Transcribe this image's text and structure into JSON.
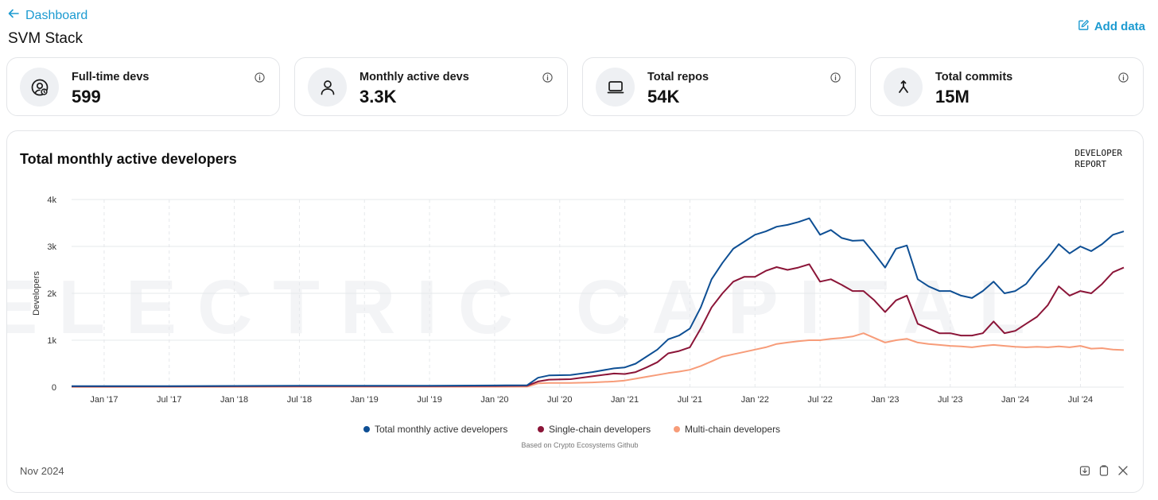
{
  "nav": {
    "back_label": "Dashboard",
    "back_icon": "arrow-left-icon"
  },
  "page": {
    "title": "SVM Stack"
  },
  "actions": {
    "add_data_label": "Add data",
    "add_data_icon": "edit-icon"
  },
  "stats": [
    {
      "label": "Full-time devs",
      "value": "599",
      "icon": "user-badge-icon"
    },
    {
      "label": "Monthly active devs",
      "value": "3.3K",
      "icon": "person-icon"
    },
    {
      "label": "Total repos",
      "value": "54K",
      "icon": "laptop-icon"
    },
    {
      "label": "Total commits",
      "value": "15M",
      "icon": "merge-icon"
    }
  ],
  "chart": {
    "brand_line1": "DEVELOPER",
    "brand_line2": "REPORT",
    "watermark": "ELECTRIC CAPITAL",
    "source_note": "Based on Crypto Ecosystems Github",
    "footer_date": "Nov 2024"
  },
  "colors": {
    "accent": "#1d9bd1",
    "total": "#0e4f94",
    "single": "#8b1538",
    "multi": "#f79c79"
  },
  "chart_data": {
    "type": "line",
    "title": "Total monthly active developers",
    "xlabel": "",
    "ylabel": "Developers",
    "ylim": [
      0,
      4000
    ],
    "yticks": [
      0,
      1000,
      2000,
      3000,
      4000
    ],
    "ytick_labels": [
      "0",
      "1k",
      "2k",
      "3k",
      "4k"
    ],
    "x_start": "Oct '16",
    "x_end": "Nov '24",
    "xtick_labels": [
      "Jan '17",
      "Jul '17",
      "Jan '18",
      "Jul '18",
      "Jan '19",
      "Jul '19",
      "Jan '20",
      "Jul '20",
      "Jan '21",
      "Jul '21",
      "Jan '22",
      "Jul '22",
      "Jan '23",
      "Jul '23",
      "Jan '24",
      "Jul '24"
    ],
    "grid": true,
    "legend_position": "bottom-center",
    "series": [
      {
        "name": "Total monthly active developers",
        "color": "#0e4f94",
        "points": [
          [
            "Oct '16",
            20
          ],
          [
            "Jan '17",
            20
          ],
          [
            "Jul '17",
            22
          ],
          [
            "Jan '18",
            25
          ],
          [
            "Jul '18",
            28
          ],
          [
            "Jan '19",
            28
          ],
          [
            "Jul '19",
            30
          ],
          [
            "Jan '20",
            35
          ],
          [
            "Apr '20",
            40
          ],
          [
            "May '20",
            200
          ],
          [
            "Jun '20",
            250
          ],
          [
            "Aug '20",
            260
          ],
          [
            "Oct '20",
            320
          ],
          [
            "Dec '20",
            400
          ],
          [
            "Jan '21",
            420
          ],
          [
            "Feb '21",
            500
          ],
          [
            "Mar '21",
            650
          ],
          [
            "Apr '21",
            800
          ],
          [
            "May '21",
            1020
          ],
          [
            "Jun '21",
            1100
          ],
          [
            "Jul '21",
            1250
          ],
          [
            "Aug '21",
            1700
          ],
          [
            "Sep '21",
            2300
          ],
          [
            "Oct '21",
            2650
          ],
          [
            "Nov '21",
            2950
          ],
          [
            "Dec '21",
            3100
          ],
          [
            "Jan '22",
            3250
          ],
          [
            "Feb '22",
            3320
          ],
          [
            "Mar '22",
            3420
          ],
          [
            "Apr '22",
            3460
          ],
          [
            "May '22",
            3520
          ],
          [
            "Jun '22",
            3600
          ],
          [
            "Jul '22",
            3250
          ],
          [
            "Aug '22",
            3350
          ],
          [
            "Sep '22",
            3180
          ],
          [
            "Oct '22",
            3120
          ],
          [
            "Nov '22",
            3130
          ],
          [
            "Dec '22",
            2850
          ],
          [
            "Jan '23",
            2550
          ],
          [
            "Feb '23",
            2950
          ],
          [
            "Mar '23",
            3020
          ],
          [
            "Apr '23",
            2300
          ],
          [
            "May '23",
            2150
          ],
          [
            "Jun '23",
            2050
          ],
          [
            "Jul '23",
            2050
          ],
          [
            "Aug '23",
            1950
          ],
          [
            "Sep '23",
            1900
          ],
          [
            "Oct '23",
            2050
          ],
          [
            "Nov '23",
            2250
          ],
          [
            "Dec '23",
            2000
          ],
          [
            "Jan '24",
            2050
          ],
          [
            "Feb '24",
            2200
          ],
          [
            "Mar '24",
            2500
          ],
          [
            "Apr '24",
            2750
          ],
          [
            "May '24",
            3050
          ],
          [
            "Jun '24",
            2850
          ],
          [
            "Jul '24",
            3000
          ],
          [
            "Aug '24",
            2900
          ],
          [
            "Sep '24",
            3050
          ],
          [
            "Oct '24",
            3250
          ],
          [
            "Nov '24",
            3320
          ]
        ]
      },
      {
        "name": "Single-chain developers",
        "color": "#8b1538",
        "points": [
          [
            "Oct '16",
            15
          ],
          [
            "Jan '17",
            15
          ],
          [
            "Jul '17",
            16
          ],
          [
            "Jan '18",
            18
          ],
          [
            "Jul '18",
            20
          ],
          [
            "Jan '19",
            20
          ],
          [
            "Jul '19",
            22
          ],
          [
            "Jan '20",
            26
          ],
          [
            "Apr '20",
            30
          ],
          [
            "May '20",
            120
          ],
          [
            "Jun '20",
            160
          ],
          [
            "Aug '20",
            170
          ],
          [
            "Oct '20",
            230
          ],
          [
            "Dec '20",
            290
          ],
          [
            "Jan '21",
            280
          ],
          [
            "Feb '21",
            320
          ],
          [
            "Mar '21",
            420
          ],
          [
            "Apr '21",
            530
          ],
          [
            "May '21",
            720
          ],
          [
            "Jun '21",
            770
          ],
          [
            "Jul '21",
            850
          ],
          [
            "Aug '21",
            1250
          ],
          [
            "Sep '21",
            1700
          ],
          [
            "Oct '21",
            2000
          ],
          [
            "Nov '21",
            2250
          ],
          [
            "Dec '21",
            2350
          ],
          [
            "Jan '22",
            2350
          ],
          [
            "Feb '22",
            2480
          ],
          [
            "Mar '22",
            2560
          ],
          [
            "Apr '22",
            2500
          ],
          [
            "May '22",
            2550
          ],
          [
            "Jun '22",
            2620
          ],
          [
            "Jul '22",
            2250
          ],
          [
            "Aug '22",
            2300
          ],
          [
            "Sep '22",
            2180
          ],
          [
            "Oct '22",
            2050
          ],
          [
            "Nov '22",
            2050
          ],
          [
            "Dec '22",
            1850
          ],
          [
            "Jan '23",
            1600
          ],
          [
            "Feb '23",
            1850
          ],
          [
            "Mar '23",
            1950
          ],
          [
            "Apr '23",
            1350
          ],
          [
            "May '23",
            1250
          ],
          [
            "Jun '23",
            1150
          ],
          [
            "Jul '23",
            1150
          ],
          [
            "Aug '23",
            1100
          ],
          [
            "Sep '23",
            1100
          ],
          [
            "Oct '23",
            1150
          ],
          [
            "Nov '23",
            1400
          ],
          [
            "Dec '23",
            1150
          ],
          [
            "Jan '24",
            1200
          ],
          [
            "Feb '24",
            1350
          ],
          [
            "Mar '24",
            1500
          ],
          [
            "Apr '24",
            1750
          ],
          [
            "May '24",
            2150
          ],
          [
            "Jun '24",
            1950
          ],
          [
            "Jul '24",
            2050
          ],
          [
            "Aug '24",
            2000
          ],
          [
            "Sep '24",
            2200
          ],
          [
            "Oct '24",
            2450
          ],
          [
            "Nov '24",
            2550
          ]
        ]
      },
      {
        "name": "Multi-chain developers",
        "color": "#f79c79",
        "points": [
          [
            "Oct '16",
            5
          ],
          [
            "Jan '17",
            5
          ],
          [
            "Jul '17",
            6
          ],
          [
            "Jan '18",
            7
          ],
          [
            "Jul '18",
            8
          ],
          [
            "Jan '19",
            8
          ],
          [
            "Jul '19",
            8
          ],
          [
            "Jan '20",
            9
          ],
          [
            "Apr '20",
            10
          ],
          [
            "May '20",
            80
          ],
          [
            "Jun '20",
            90
          ],
          [
            "Aug '20",
            90
          ],
          [
            "Oct '20",
            100
          ],
          [
            "Dec '20",
            120
          ],
          [
            "Jan '21",
            140
          ],
          [
            "Feb '21",
            180
          ],
          [
            "Mar '21",
            220
          ],
          [
            "Apr '21",
            260
          ],
          [
            "May '21",
            300
          ],
          [
            "Jun '21",
            330
          ],
          [
            "Jul '21",
            370
          ],
          [
            "Aug '21",
            450
          ],
          [
            "Sep '21",
            550
          ],
          [
            "Oct '21",
            650
          ],
          [
            "Nov '21",
            700
          ],
          [
            "Dec '21",
            750
          ],
          [
            "Jan '22",
            800
          ],
          [
            "Feb '22",
            850
          ],
          [
            "Mar '22",
            920
          ],
          [
            "Apr '22",
            950
          ],
          [
            "May '22",
            980
          ],
          [
            "Jun '22",
            1000
          ],
          [
            "Jul '22",
            1000
          ],
          [
            "Aug '22",
            1030
          ],
          [
            "Sep '22",
            1050
          ],
          [
            "Oct '22",
            1080
          ],
          [
            "Nov '22",
            1150
          ],
          [
            "Dec '22",
            1050
          ],
          [
            "Jan '23",
            950
          ],
          [
            "Feb '23",
            1000
          ],
          [
            "Mar '23",
            1030
          ],
          [
            "Apr '23",
            950
          ],
          [
            "May '23",
            920
          ],
          [
            "Jun '23",
            900
          ],
          [
            "Jul '23",
            880
          ],
          [
            "Aug '23",
            870
          ],
          [
            "Sep '23",
            850
          ],
          [
            "Oct '23",
            880
          ],
          [
            "Nov '23",
            900
          ],
          [
            "Dec '23",
            880
          ],
          [
            "Jan '24",
            860
          ],
          [
            "Feb '24",
            850
          ],
          [
            "Mar '24",
            860
          ],
          [
            "Apr '24",
            850
          ],
          [
            "May '24",
            870
          ],
          [
            "Jun '24",
            850
          ],
          [
            "Jul '24",
            880
          ],
          [
            "Aug '24",
            820
          ],
          [
            "Sep '24",
            830
          ],
          [
            "Oct '24",
            800
          ],
          [
            "Nov '24",
            790
          ]
        ]
      }
    ]
  }
}
